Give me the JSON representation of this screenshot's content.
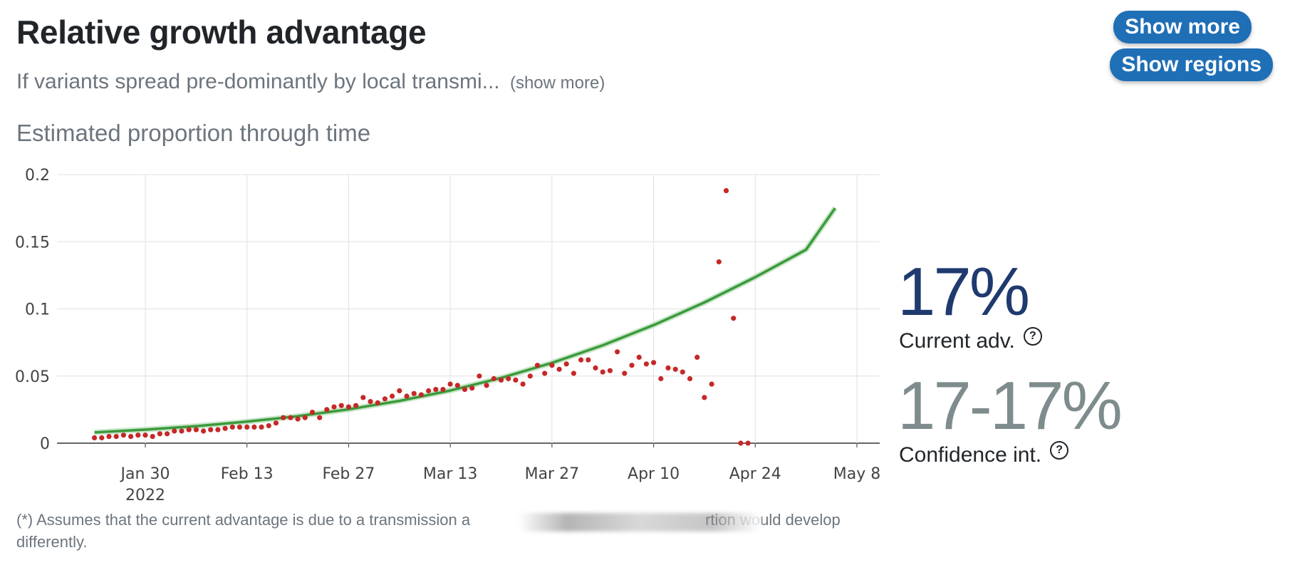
{
  "header": {
    "title": "Relative growth advantage",
    "subtitle": "If variants spread pre-dominantly by local transmi...",
    "subtitle_more": "(show more)",
    "section_heading": "Estimated proportion through time"
  },
  "buttons": {
    "show_more": "Show more",
    "show_regions": "Show regions"
  },
  "stats": {
    "current_value": "17%",
    "current_label": "Current adv.",
    "ci_value": "17-17%",
    "ci_label": "Confidence int.",
    "help_glyph": "?"
  },
  "footnote": {
    "text": "(*) Assumes that the current advantage is due to a transmission a",
    "text_after_redaction": "rtion would develop differently."
  },
  "colors": {
    "accent_button": "#1f6fb6",
    "current_value": "#1e3a6e",
    "ci_value": "#7f8c8d",
    "fit_line": "#3a9a3a",
    "points": "#c62828"
  },
  "chart_data": {
    "type": "scatter",
    "xlabel": "",
    "ylabel": "",
    "x_axis_type": "date",
    "xlim": [
      "2022-01-17",
      "2022-05-08"
    ],
    "ylim": [
      0,
      0.2
    ],
    "grid": true,
    "x_ticks": [
      {
        "date": "2022-01-30",
        "label": "Jan 30",
        "sublabel": "2022"
      },
      {
        "date": "2022-02-13",
        "label": "Feb 13"
      },
      {
        "date": "2022-02-27",
        "label": "Feb 27"
      },
      {
        "date": "2022-03-13",
        "label": "Mar 13"
      },
      {
        "date": "2022-03-27",
        "label": "Mar 27"
      },
      {
        "date": "2022-04-10",
        "label": "Apr 10"
      },
      {
        "date": "2022-04-24",
        "label": "Apr 24"
      },
      {
        "date": "2022-05-08",
        "label": "May 8"
      }
    ],
    "y_ticks": [
      {
        "value": 0,
        "label": "0"
      },
      {
        "value": 0.05,
        "label": "0.05"
      },
      {
        "value": 0.1,
        "label": "0.1"
      },
      {
        "value": 0.15,
        "label": "0.15"
      },
      {
        "value": 0.2,
        "label": "0.2"
      }
    ],
    "series": [
      {
        "kind": "points",
        "points": [
          [
            "2022-01-23",
            0.004
          ],
          [
            "2022-01-24",
            0.004
          ],
          [
            "2022-01-25",
            0.005
          ],
          [
            "2022-01-26",
            0.005
          ],
          [
            "2022-01-27",
            0.006
          ],
          [
            "2022-01-28",
            0.005
          ],
          [
            "2022-01-29",
            0.006
          ],
          [
            "2022-01-30",
            0.006
          ],
          [
            "2022-01-31",
            0.005
          ],
          [
            "2022-02-01",
            0.007
          ],
          [
            "2022-02-02",
            0.007
          ],
          [
            "2022-02-03",
            0.009
          ],
          [
            "2022-02-04",
            0.009
          ],
          [
            "2022-02-05",
            0.01
          ],
          [
            "2022-02-06",
            0.01
          ],
          [
            "2022-02-07",
            0.009
          ],
          [
            "2022-02-08",
            0.01
          ],
          [
            "2022-02-09",
            0.01
          ],
          [
            "2022-02-10",
            0.011
          ],
          [
            "2022-02-11",
            0.012
          ],
          [
            "2022-02-12",
            0.012
          ],
          [
            "2022-02-13",
            0.012
          ],
          [
            "2022-02-14",
            0.012
          ],
          [
            "2022-02-15",
            0.012
          ],
          [
            "2022-02-16",
            0.013
          ],
          [
            "2022-02-17",
            0.015
          ],
          [
            "2022-02-18",
            0.019
          ],
          [
            "2022-02-19",
            0.019
          ],
          [
            "2022-02-20",
            0.018
          ],
          [
            "2022-02-21",
            0.019
          ],
          [
            "2022-02-22",
            0.023
          ],
          [
            "2022-02-23",
            0.019
          ],
          [
            "2022-02-24",
            0.025
          ],
          [
            "2022-02-25",
            0.027
          ],
          [
            "2022-02-26",
            0.028
          ],
          [
            "2022-02-27",
            0.027
          ],
          [
            "2022-02-28",
            0.028
          ],
          [
            "2022-03-01",
            0.034
          ],
          [
            "2022-03-02",
            0.031
          ],
          [
            "2022-03-03",
            0.03
          ],
          [
            "2022-03-04",
            0.033
          ],
          [
            "2022-03-05",
            0.035
          ],
          [
            "2022-03-06",
            0.039
          ],
          [
            "2022-03-07",
            0.035
          ],
          [
            "2022-03-08",
            0.037
          ],
          [
            "2022-03-09",
            0.036
          ],
          [
            "2022-03-10",
            0.039
          ],
          [
            "2022-03-11",
            0.04
          ],
          [
            "2022-03-12",
            0.04
          ],
          [
            "2022-03-13",
            0.044
          ],
          [
            "2022-03-14",
            0.043
          ],
          [
            "2022-03-15",
            0.04
          ],
          [
            "2022-03-16",
            0.041
          ],
          [
            "2022-03-17",
            0.05
          ],
          [
            "2022-03-18",
            0.043
          ],
          [
            "2022-03-19",
            0.048
          ],
          [
            "2022-03-20",
            0.047
          ],
          [
            "2022-03-21",
            0.048
          ],
          [
            "2022-03-22",
            0.047
          ],
          [
            "2022-03-23",
            0.044
          ],
          [
            "2022-03-24",
            0.05
          ],
          [
            "2022-03-25",
            0.058
          ],
          [
            "2022-03-26",
            0.052
          ],
          [
            "2022-03-27",
            0.058
          ],
          [
            "2022-03-28",
            0.055
          ],
          [
            "2022-03-29",
            0.059
          ],
          [
            "2022-03-30",
            0.052
          ],
          [
            "2022-03-31",
            0.062
          ],
          [
            "2022-04-01",
            0.062
          ],
          [
            "2022-04-02",
            0.056
          ],
          [
            "2022-04-03",
            0.053
          ],
          [
            "2022-04-04",
            0.054
          ],
          [
            "2022-04-05",
            0.068
          ],
          [
            "2022-04-06",
            0.052
          ],
          [
            "2022-04-07",
            0.058
          ],
          [
            "2022-04-08",
            0.064
          ],
          [
            "2022-04-09",
            0.059
          ],
          [
            "2022-04-10",
            0.06
          ],
          [
            "2022-04-11",
            0.048
          ],
          [
            "2022-04-12",
            0.056
          ],
          [
            "2022-04-13",
            0.055
          ],
          [
            "2022-04-14",
            0.053
          ],
          [
            "2022-04-15",
            0.048
          ],
          [
            "2022-04-16",
            0.064
          ],
          [
            "2022-04-17",
            0.034
          ],
          [
            "2022-04-18",
            0.044
          ],
          [
            "2022-04-19",
            0.135
          ],
          [
            "2022-04-20",
            0.188
          ],
          [
            "2022-04-21",
            0.093
          ],
          [
            "2022-04-22",
            0
          ],
          [
            "2022-04-23",
            0
          ]
        ]
      },
      {
        "kind": "fit-line",
        "points": [
          [
            "2022-01-23",
            0.008
          ],
          [
            "2022-01-30",
            0.0101
          ],
          [
            "2022-02-06",
            0.0127
          ],
          [
            "2022-02-13",
            0.016
          ],
          [
            "2022-02-20",
            0.0201
          ],
          [
            "2022-02-27",
            0.0252
          ],
          [
            "2022-03-06",
            0.0315
          ],
          [
            "2022-03-13",
            0.0392
          ],
          [
            "2022-03-20",
            0.0486
          ],
          [
            "2022-03-27",
            0.0598
          ],
          [
            "2022-04-03",
            0.0729
          ],
          [
            "2022-04-10",
            0.0879
          ],
          [
            "2022-04-17",
            0.1048
          ],
          [
            "2022-04-24",
            0.1236
          ],
          [
            "2022-05-01",
            0.1441
          ],
          [
            "2022-05-05",
            0.175
          ]
        ]
      }
    ]
  }
}
